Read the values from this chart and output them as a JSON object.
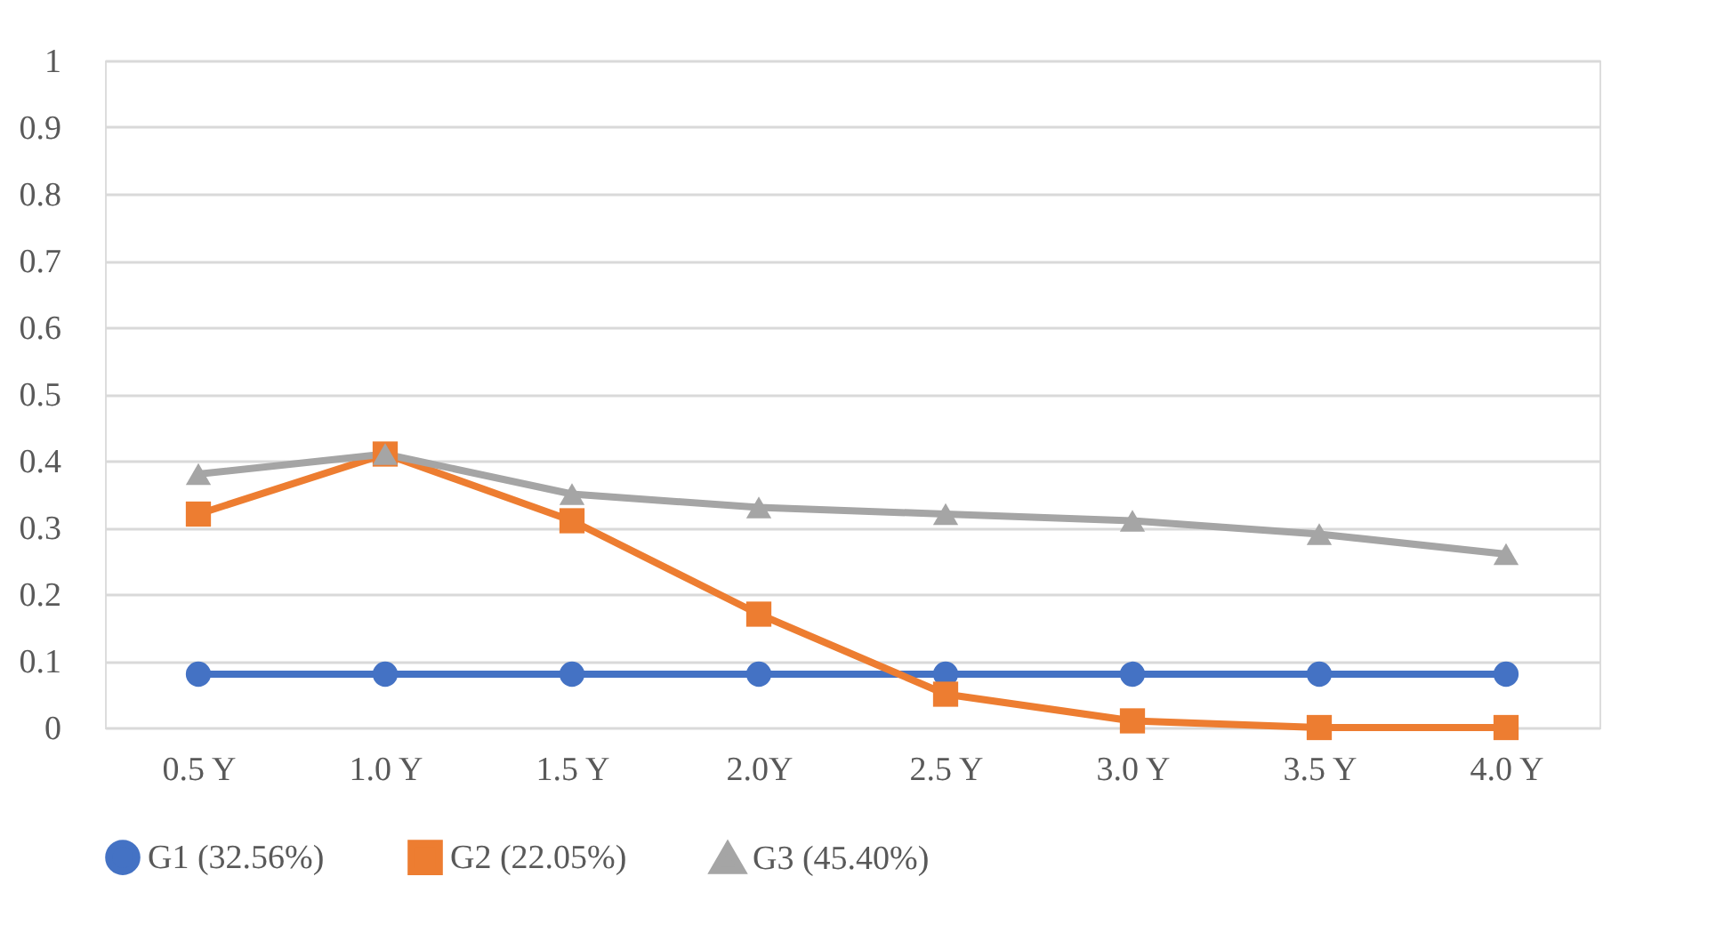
{
  "chart_data": {
    "type": "line",
    "categories": [
      "0.5 Y",
      "1.0 Y",
      "1.5 Y",
      "2.0Y",
      "2.5 Y",
      "3.0 Y",
      "3.5 Y",
      "4.0 Y"
    ],
    "series": [
      {
        "name": "G1 (32.56%)",
        "color": "#4472c4",
        "marker": "circle",
        "values": [
          0.08,
          0.08,
          0.08,
          0.08,
          0.08,
          0.08,
          0.08,
          0.08
        ]
      },
      {
        "name": "G2 (22.05%)",
        "color": "#ed7d31",
        "marker": "square",
        "values": [
          0.32,
          0.41,
          0.31,
          0.17,
          0.05,
          0.01,
          0,
          0
        ]
      },
      {
        "name": "G3 (45.40%)",
        "color": "#a5a5a5",
        "marker": "triangle",
        "values": [
          0.38,
          0.41,
          0.35,
          0.33,
          0.32,
          0.31,
          0.29,
          0.26
        ]
      }
    ],
    "ylim": [
      0,
      1
    ],
    "yticks": [
      0,
      0.1,
      0.2,
      0.3,
      0.4,
      0.5,
      0.6,
      0.7,
      0.8,
      0.9,
      1
    ],
    "grid": "y",
    "legend": "bottom"
  }
}
